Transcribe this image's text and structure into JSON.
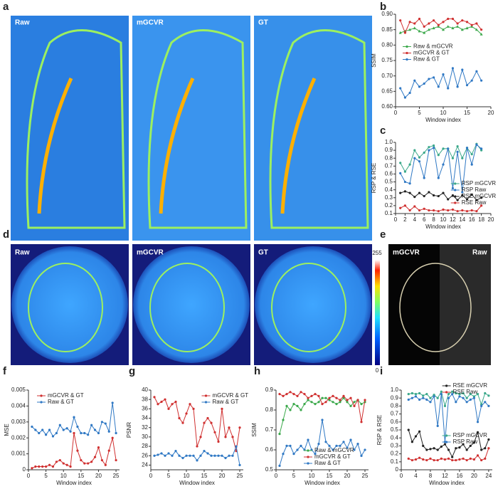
{
  "panels": [
    "a",
    "b",
    "c",
    "d",
    "e",
    "f",
    "g",
    "h",
    "i"
  ],
  "images": {
    "a": [
      "Raw",
      "mGCVR",
      "GT"
    ],
    "d": [
      "Raw",
      "mGCVR",
      "GT"
    ],
    "e": [
      "mGCVR",
      "Raw"
    ]
  },
  "colorbar": {
    "ticks": [
      0,
      255
    ]
  },
  "chart_data": [
    {
      "type": "line",
      "xlabel": "Window index",
      "ylabel": "SSIM",
      "legend": "center left",
      "xlim": [
        0,
        20
      ],
      "xticks": [
        0,
        5,
        10,
        15,
        20
      ],
      "ylim": [
        0.6,
        0.9
      ],
      "yticks": [
        {
          "value": 0.6,
          "label": "0.60"
        },
        {
          "value": 0.65,
          "label": "0.65"
        },
        {
          "value": 0.7,
          "label": "0.70"
        },
        {
          "value": 0.75,
          "label": "0.75"
        },
        {
          "value": 0.8,
          "label": "0.80"
        },
        {
          "value": 0.85,
          "label": "0.85"
        },
        {
          "value": 0.9,
          "label": "0.90"
        }
      ],
      "x": [
        1,
        2,
        3,
        4,
        5,
        6,
        7,
        8,
        9,
        10,
        11,
        12,
        13,
        14,
        15,
        16,
        17,
        18
      ],
      "series": [
        {
          "name": "Raw & mGCVR",
          "color": "#3aa84a",
          "marker": "triangle",
          "values": [
            0.84,
            0.845,
            0.85,
            0.855,
            0.845,
            0.84,
            0.85,
            0.855,
            0.86,
            0.85,
            0.86,
            0.855,
            0.86,
            0.85,
            0.855,
            0.86,
            0.85,
            0.835
          ]
        },
        {
          "name": "mGCVR & GT",
          "color": "#d03030",
          "marker": "circle",
          "values": [
            0.88,
            0.84,
            0.875,
            0.87,
            0.885,
            0.86,
            0.87,
            0.88,
            0.865,
            0.875,
            0.885,
            0.885,
            0.87,
            0.88,
            0.875,
            0.865,
            0.87,
            0.85
          ]
        },
        {
          "name": "Raw & GT",
          "color": "#2f78c4",
          "marker": "circle",
          "values": [
            0.66,
            0.63,
            0.645,
            0.685,
            0.665,
            0.675,
            0.69,
            0.695,
            0.665,
            0.705,
            0.66,
            0.725,
            0.665,
            0.72,
            0.67,
            0.685,
            0.715,
            0.685
          ]
        }
      ]
    },
    {
      "type": "line",
      "xlabel": "Window index",
      "ylabel": "RSP & RSE",
      "legend": "center right",
      "xlim": [
        0,
        20
      ],
      "xticks": [
        0,
        2,
        4,
        6,
        8,
        10,
        12,
        14,
        16,
        18,
        20
      ],
      "ylim": [
        0.1,
        1.0
      ],
      "yticks": [
        0.1,
        0.2,
        0.3,
        0.4,
        0.5,
        0.6,
        0.7,
        0.8,
        0.9,
        {
          "value": 1.0,
          "label": "1.0"
        }
      ],
      "x": [
        1,
        2,
        3,
        4,
        5,
        6,
        7,
        8,
        9,
        10,
        11,
        12,
        13,
        14,
        15,
        16,
        17,
        18
      ],
      "series": [
        {
          "name": "RSP mGCVR",
          "color": "#3aa88a",
          "marker": "circle",
          "values": [
            0.74,
            0.63,
            0.72,
            0.9,
            0.81,
            0.87,
            0.94,
            0.96,
            0.84,
            0.92,
            0.92,
            0.8,
            0.95,
            0.8,
            0.93,
            0.85,
            0.98,
            0.9
          ]
        },
        {
          "name": "RSP Raw",
          "color": "#2f78c4",
          "marker": "circle",
          "values": [
            0.61,
            0.5,
            0.48,
            0.8,
            0.76,
            0.55,
            0.9,
            0.93,
            0.55,
            0.72,
            0.92,
            0.42,
            0.88,
            0.37,
            0.93,
            0.72,
            0.97,
            0.92
          ]
        },
        {
          "name": "RSE mGCVR",
          "color": "#222222",
          "marker": "circle",
          "values": [
            0.36,
            0.38,
            0.36,
            0.31,
            0.36,
            0.32,
            0.37,
            0.33,
            0.32,
            0.36,
            0.28,
            0.33,
            0.27,
            0.33,
            0.28,
            0.34,
            0.27,
            0.3
          ]
        },
        {
          "name": "RSE Raw",
          "color": "#d03030",
          "marker": "circle",
          "values": [
            0.17,
            0.2,
            0.14,
            0.19,
            0.14,
            0.16,
            0.14,
            0.14,
            0.13,
            0.15,
            0.14,
            0.15,
            0.13,
            0.14,
            0.13,
            0.14,
            0.13,
            0.2
          ]
        }
      ]
    },
    {
      "type": "line",
      "xlabel": "Window index",
      "ylabel": "MSE",
      "legend": "upper left",
      "xlim": [
        0,
        26
      ],
      "xticks": [
        0,
        5,
        10,
        15,
        20,
        25
      ],
      "ylim": [
        0,
        0.005
      ],
      "yticks": [
        0,
        0.001,
        0.002,
        0.003,
        0.004,
        0.005
      ],
      "x": [
        1,
        2,
        3,
        4,
        5,
        6,
        7,
        8,
        9,
        10,
        11,
        12,
        13,
        14,
        15,
        16,
        17,
        18,
        19,
        20,
        21,
        22,
        23,
        24,
        25
      ],
      "series": [
        {
          "name": "mGCVR & GT",
          "color": "#d03030",
          "marker": "circle",
          "values": [
            0.0001,
            0.0002,
            0.0002,
            0.0002,
            0.0002,
            0.0003,
            0.0002,
            0.0005,
            0.0006,
            0.0004,
            0.0003,
            0.0002,
            0.0023,
            0.0012,
            0.0006,
            0.0004,
            0.0004,
            0.0005,
            0.0008,
            0.0014,
            0.0006,
            0.0003,
            0.0012,
            0.002,
            0.0006
          ]
        },
        {
          "name": "Raw & GT",
          "color": "#2f78c4",
          "marker": "circle",
          "values": [
            0.0027,
            0.0025,
            0.0023,
            0.0025,
            0.0022,
            0.0025,
            0.0021,
            0.0023,
            0.0028,
            0.0025,
            0.0026,
            0.0024,
            0.0033,
            0.0027,
            0.0023,
            0.0023,
            0.0022,
            0.0028,
            0.0025,
            0.0023,
            0.003,
            0.0029,
            0.0024,
            0.0042,
            0.0023
          ]
        }
      ]
    },
    {
      "type": "line",
      "xlabel": "Window index",
      "ylabel": "PSNR",
      "legend": "upper right",
      "xlim": [
        0,
        26
      ],
      "xticks": [
        0,
        5,
        10,
        15,
        20,
        25
      ],
      "ylim": [
        23,
        40
      ],
      "yticks": [
        24,
        26,
        28,
        30,
        32,
        34,
        36,
        38,
        40
      ],
      "x": [
        1,
        2,
        3,
        4,
        5,
        6,
        7,
        8,
        9,
        10,
        11,
        12,
        13,
        14,
        15,
        16,
        17,
        18,
        19,
        20,
        21,
        22,
        23,
        24,
        25
      ],
      "series": [
        {
          "name": "mGCVR & GT",
          "color": "#d03030",
          "marker": "circle",
          "values": [
            38.5,
            37,
            37.5,
            38,
            36,
            37,
            37.5,
            34,
            33,
            35,
            37,
            36,
            28,
            30,
            33,
            34,
            33,
            31,
            29,
            36,
            30,
            32,
            30,
            27,
            32
          ]
        },
        {
          "name": "Raw & GT",
          "color": "#2f78c4",
          "marker": "circle",
          "values": [
            26,
            26.2,
            26.5,
            26,
            26.5,
            26,
            27,
            26,
            25.5,
            26,
            26,
            26,
            25,
            26,
            27,
            26.5,
            26,
            26,
            26,
            26,
            25.5,
            26,
            26,
            28,
            24
          ]
        }
      ]
    },
    {
      "type": "line",
      "xlabel": "Window index",
      "ylabel": "SSIM",
      "legend": "lower center",
      "xlim": [
        0,
        26
      ],
      "xticks": [
        0,
        5,
        10,
        15,
        20,
        25
      ],
      "ylim": [
        0.5,
        0.9
      ],
      "yticks": [
        0.5,
        0.6,
        0.7,
        0.8,
        0.9
      ],
      "x": [
        1,
        2,
        3,
        4,
        5,
        6,
        7,
        8,
        9,
        10,
        11,
        12,
        13,
        14,
        15,
        16,
        17,
        18,
        19,
        20,
        21,
        22,
        23,
        24,
        25
      ],
      "series": [
        {
          "name": "Raw & mGCVR",
          "color": "#3aa84a",
          "marker": "circle",
          "values": [
            0.68,
            0.75,
            0.82,
            0.8,
            0.83,
            0.82,
            0.8,
            0.83,
            0.85,
            0.84,
            0.83,
            0.84,
            0.86,
            0.86,
            0.85,
            0.84,
            0.83,
            0.84,
            0.86,
            0.84,
            0.82,
            0.84,
            0.85,
            0.83,
            0.84
          ]
        },
        {
          "name": "mGCVR & GT",
          "color": "#d03030",
          "marker": "circle",
          "values": [
            0.88,
            0.87,
            0.88,
            0.89,
            0.88,
            0.87,
            0.89,
            0.88,
            0.86,
            0.87,
            0.88,
            0.87,
            0.83,
            0.84,
            0.86,
            0.87,
            0.86,
            0.85,
            0.87,
            0.85,
            0.86,
            0.82,
            0.85,
            0.74,
            0.85
          ]
        },
        {
          "name": "Raw & GT",
          "color": "#2f78c4",
          "marker": "circle",
          "values": [
            0.52,
            0.58,
            0.62,
            0.62,
            0.58,
            0.6,
            0.62,
            0.6,
            0.65,
            0.6,
            0.58,
            0.63,
            0.75,
            0.64,
            0.62,
            0.6,
            0.62,
            0.62,
            0.64,
            0.61,
            0.65,
            0.6,
            0.63,
            0.57,
            0.6
          ]
        }
      ]
    },
    {
      "type": "line",
      "xlabel": "Window index",
      "ylabel": "RSP & RSE",
      "legend": "split",
      "xlim": [
        0,
        25
      ],
      "xticks": [
        0,
        4,
        8,
        12,
        16,
        20,
        24
      ],
      "ylim": [
        0,
        1.0
      ],
      "yticks": [
        0,
        0.1,
        0.2,
        0.3,
        0.4,
        0.5,
        0.6,
        0.7,
        0.8,
        0.9,
        {
          "value": 1.0,
          "label": "1.0"
        }
      ],
      "x": [
        2,
        3,
        4,
        5,
        6,
        7,
        8,
        9,
        10,
        11,
        12,
        13,
        14,
        15,
        16,
        17,
        18,
        19,
        20,
        21,
        22,
        23,
        24
      ],
      "series": [
        {
          "name": "RSE mGCVR",
          "color": "#222222",
          "marker": "circle",
          "values": [
            0.5,
            0.35,
            0.42,
            0.48,
            0.3,
            0.25,
            0.26,
            0.27,
            0.25,
            0.29,
            0.32,
            0.25,
            0.16,
            0.27,
            0.28,
            0.32,
            0.25,
            0.3,
            0.34,
            0.47,
            0.25,
            0.27,
            0.38
          ]
        },
        {
          "name": "RSE Raw",
          "color": "#d03030",
          "marker": "circle",
          "values": [
            0.14,
            0.12,
            0.13,
            0.15,
            0.13,
            0.12,
            0.14,
            0.12,
            0.12,
            0.14,
            0.13,
            0.14,
            0.12,
            0.12,
            0.13,
            0.14,
            0.12,
            0.14,
            0.13,
            0.18,
            0.12,
            0.14,
            0.27
          ]
        },
        {
          "name": "RSP mGCVR",
          "color": "#3aa88a",
          "marker": "circle",
          "values": [
            0.95,
            0.96,
            0.95,
            0.96,
            0.93,
            0.95,
            0.9,
            0.94,
            0.9,
            0.98,
            0.8,
            0.95,
            0.98,
            0.96,
            0.95,
            0.96,
            0.9,
            0.95,
            0.92,
            0.95,
            0.82,
            0.96,
            0.93
          ]
        },
        {
          "name": "RSP Raw",
          "color": "#2f78c4",
          "marker": "circle",
          "values": [
            0.88,
            0.9,
            0.92,
            0.88,
            0.9,
            0.88,
            0.85,
            0.92,
            0.55,
            0.95,
            0.35,
            0.9,
            0.95,
            0.85,
            0.92,
            0.9,
            0.85,
            0.88,
            0.9,
            0.6,
            0.8,
            0.85,
            0.8
          ]
        }
      ]
    }
  ]
}
